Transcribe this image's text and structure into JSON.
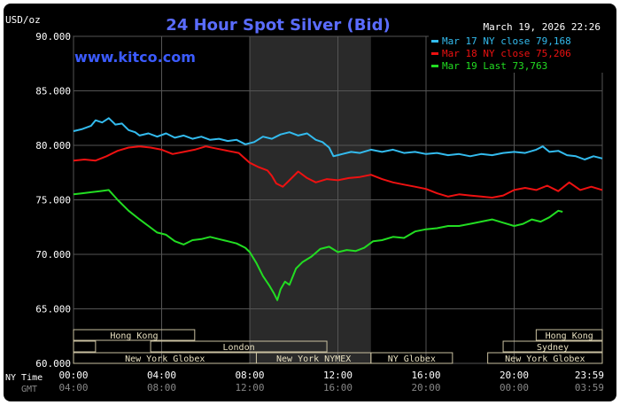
{
  "header": {
    "unit_label": "USD/oz",
    "title": "24 Hour Spot Silver (Bid)",
    "timestamp": "March 19, 2026 22:26",
    "watermark": "www.kitco.com"
  },
  "colors": {
    "background": "#000000",
    "grid": "#555555",
    "axis_text": "#ffffff",
    "title": "#5a6cff",
    "watermark": "#3b5bff",
    "shade": "#2a2a2a",
    "session_box": "#c9c0a0",
    "session_text": "#e8e0c0"
  },
  "legend": [
    {
      "label": "Mar 17 NY close 79,168",
      "color": "#33bbee"
    },
    {
      "label": "Mar 18 NY close 75,206",
      "color": "#ee1111"
    },
    {
      "label": "Mar 19 Last 73,763",
      "color": "#22dd22"
    }
  ],
  "sessions": [
    {
      "label": "Hong Kong",
      "start": 0,
      "end": 5.5
    },
    {
      "label": "Hong Kong",
      "start": 21,
      "end": 24
    },
    {
      "label": "",
      "start": 0,
      "end": 1
    },
    {
      "label": "London",
      "start": 3.5,
      "end": 11.5
    },
    {
      "label": "Sydney",
      "start": 19.5,
      "end": 24
    },
    {
      "label": "New York Globex",
      "start": 0,
      "end": 8.3
    },
    {
      "label": "New York NYMEX",
      "start": 8.3,
      "end": 13.5
    },
    {
      "label": "NY Globex",
      "start": 13.5,
      "end": 17.2
    },
    {
      "label": "New York Globex",
      "start": 18.8,
      "end": 24
    }
  ],
  "x_axis": {
    "ny_time_label": "NY Time",
    "gmt_label": "GMT",
    "ny_ticks": [
      "00:00",
      "04:00",
      "08:00",
      "12:00",
      "16:00",
      "20:00",
      "23:59"
    ],
    "gmt_ticks": [
      "04:00",
      "08:00",
      "12:00",
      "16:00",
      "20:00",
      "00:00",
      "03:59"
    ]
  },
  "chart_data": {
    "type": "line",
    "title": "24 Hour Spot Silver (Bid)",
    "ylabel": "USD/oz",
    "xlabel": "",
    "ylim": [
      60000,
      90000
    ],
    "yticks": [
      60000,
      65000,
      70000,
      75000,
      80000,
      85000,
      90000
    ],
    "ytick_labels": [
      "60.000",
      "65.000",
      "70.000",
      "75.000",
      "80.000",
      "85.000",
      "90.000"
    ],
    "xlim": [
      0,
      24
    ],
    "shaded_range": [
      8,
      13.5
    ],
    "grid": true,
    "legend_position": "top-right",
    "series": [
      {
        "name": "Mar 17 NY close 79,168",
        "color": "#33bbee",
        "x": [
          0,
          0.4,
          0.8,
          1.0,
          1.3,
          1.6,
          1.9,
          2.2,
          2.5,
          2.8,
          3.0,
          3.4,
          3.8,
          4.2,
          4.6,
          5.0,
          5.4,
          5.8,
          6.2,
          6.6,
          7.0,
          7.4,
          7.8,
          8.2,
          8.6,
          9.0,
          9.4,
          9.8,
          10.2,
          10.6,
          11.0,
          11.3,
          11.6,
          11.8,
          12.2,
          12.6,
          13.0,
          13.5,
          14.0,
          14.5,
          15.0,
          15.5,
          16.0,
          16.5,
          17.0,
          17.5,
          18.0,
          18.5,
          19.0,
          19.5,
          20.0,
          20.5,
          21.0,
          21.3,
          21.6,
          22.0,
          22.4,
          22.8,
          23.2,
          23.6,
          24.0
        ],
        "y": [
          81300,
          81500,
          81800,
          82300,
          82100,
          82500,
          81900,
          82000,
          81400,
          81200,
          80900,
          81100,
          80800,
          81100,
          80700,
          80900,
          80600,
          80800,
          80500,
          80600,
          80400,
          80500,
          80100,
          80300,
          80800,
          80600,
          81000,
          81200,
          80900,
          81100,
          80500,
          80300,
          79800,
          79000,
          79200,
          79400,
          79300,
          79600,
          79400,
          79600,
          79300,
          79400,
          79200,
          79300,
          79100,
          79200,
          79000,
          79200,
          79100,
          79300,
          79400,
          79300,
          79600,
          79900,
          79400,
          79500,
          79100,
          79000,
          78700,
          79000,
          78800
        ]
      },
      {
        "name": "Mar 18 NY close 75,206",
        "color": "#ee1111",
        "x": [
          0,
          0.5,
          1.0,
          1.5,
          2.0,
          2.5,
          3.0,
          3.5,
          4.0,
          4.5,
          5.0,
          5.5,
          6.0,
          6.5,
          7.0,
          7.5,
          8.0,
          8.4,
          8.8,
          9.0,
          9.2,
          9.5,
          9.8,
          10.2,
          10.6,
          11.0,
          11.5,
          12.0,
          12.5,
          13.0,
          13.5,
          14.0,
          14.5,
          15.0,
          15.5,
          16.0,
          16.5,
          17.0,
          17.5,
          18.0,
          18.5,
          19.0,
          19.5,
          20.0,
          20.5,
          21.0,
          21.5,
          22.0,
          22.5,
          23.0,
          23.5,
          24.0
        ],
        "y": [
          78600,
          78700,
          78600,
          79000,
          79500,
          79800,
          79900,
          79800,
          79600,
          79200,
          79400,
          79600,
          79900,
          79700,
          79500,
          79300,
          78400,
          78000,
          77700,
          77200,
          76500,
          76200,
          76800,
          77600,
          77000,
          76600,
          76900,
          76800,
          77000,
          77100,
          77300,
          76900,
          76600,
          76400,
          76200,
          76000,
          75600,
          75300,
          75500,
          75400,
          75300,
          75200,
          75400,
          75900,
          76100,
          75900,
          76300,
          75800,
          76600,
          75900,
          76200,
          75900
        ]
      },
      {
        "name": "Mar 19 Last 73,763",
        "color": "#22dd22",
        "x": [
          0,
          0.4,
          0.8,
          1.2,
          1.6,
          2.0,
          2.5,
          3.0,
          3.4,
          3.8,
          4.2,
          4.6,
          5.0,
          5.4,
          5.8,
          6.2,
          6.6,
          7.0,
          7.4,
          7.8,
          8.0,
          8.3,
          8.6,
          8.9,
          9.1,
          9.25,
          9.4,
          9.6,
          9.8,
          10.1,
          10.4,
          10.8,
          11.2,
          11.6,
          12.0,
          12.4,
          12.8,
          13.2,
          13.6,
          14.0,
          14.5,
          15.0,
          15.5,
          16.0,
          16.5,
          17.0,
          17.5,
          18.0,
          18.5,
          19.0,
          19.5,
          20.0,
          20.4,
          20.8,
          21.2,
          21.6,
          22.0,
          22.2
        ],
        "y": [
          75500,
          75600,
          75700,
          75800,
          75900,
          75000,
          74000,
          73200,
          72600,
          72000,
          71800,
          71200,
          70900,
          71300,
          71400,
          71600,
          71400,
          71200,
          71000,
          70600,
          70200,
          69200,
          68000,
          67100,
          66400,
          65800,
          66800,
          67500,
          67200,
          68700,
          69300,
          69800,
          70500,
          70700,
          70200,
          70400,
          70300,
          70600,
          71200,
          71300,
          71600,
          71500,
          72100,
          72300,
          72400,
          72600,
          72600,
          72800,
          73000,
          73200,
          72900,
          72600,
          72800,
          73200,
          73000,
          73400,
          74000,
          73900
        ]
      }
    ]
  }
}
